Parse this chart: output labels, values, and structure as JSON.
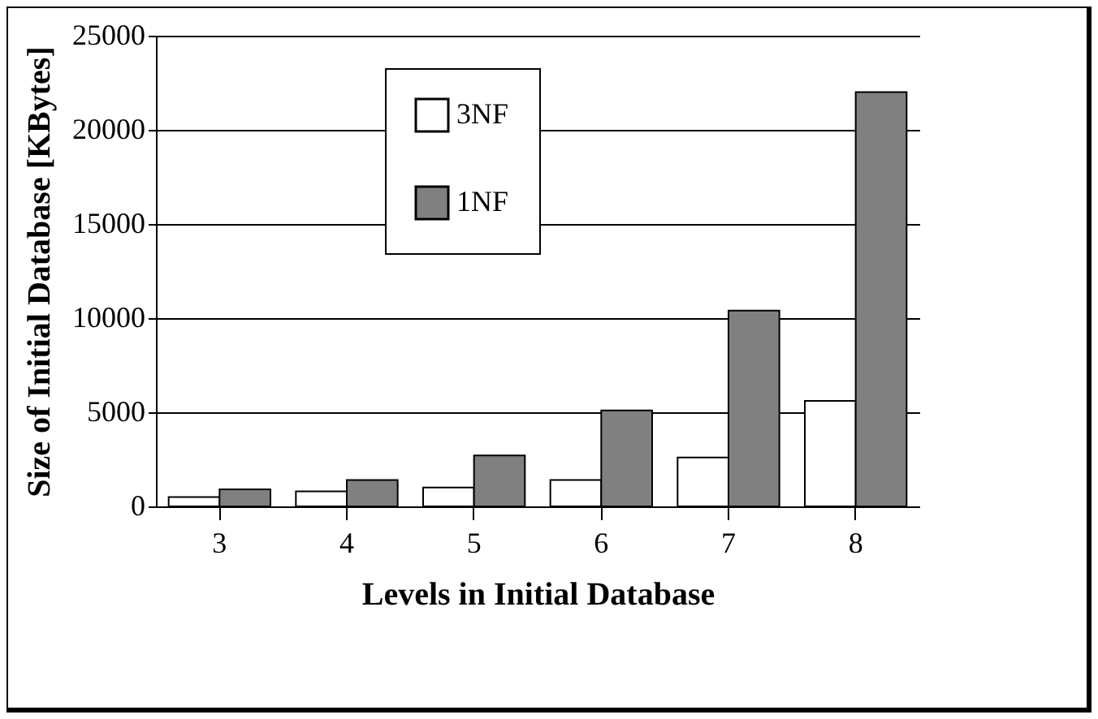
{
  "chart_data": {
    "type": "bar",
    "xlabel": "Levels in Initial Database",
    "ylabel": "Size of Initial Database [KBytes]",
    "categories": [
      "3",
      "4",
      "5",
      "6",
      "7",
      "8"
    ],
    "series": [
      {
        "name": "3NF",
        "color": "#ffffff",
        "values": [
          500,
          800,
          1000,
          1400,
          2600,
          5600
        ]
      },
      {
        "name": "1NF",
        "color": "#808080",
        "values": [
          900,
          1400,
          2700,
          5100,
          10400,
          22000
        ]
      }
    ],
    "ylim": [
      0,
      25000
    ],
    "yticks": [
      0,
      5000,
      10000,
      15000,
      20000,
      25000
    ],
    "grid": "y",
    "legend": "top"
  }
}
